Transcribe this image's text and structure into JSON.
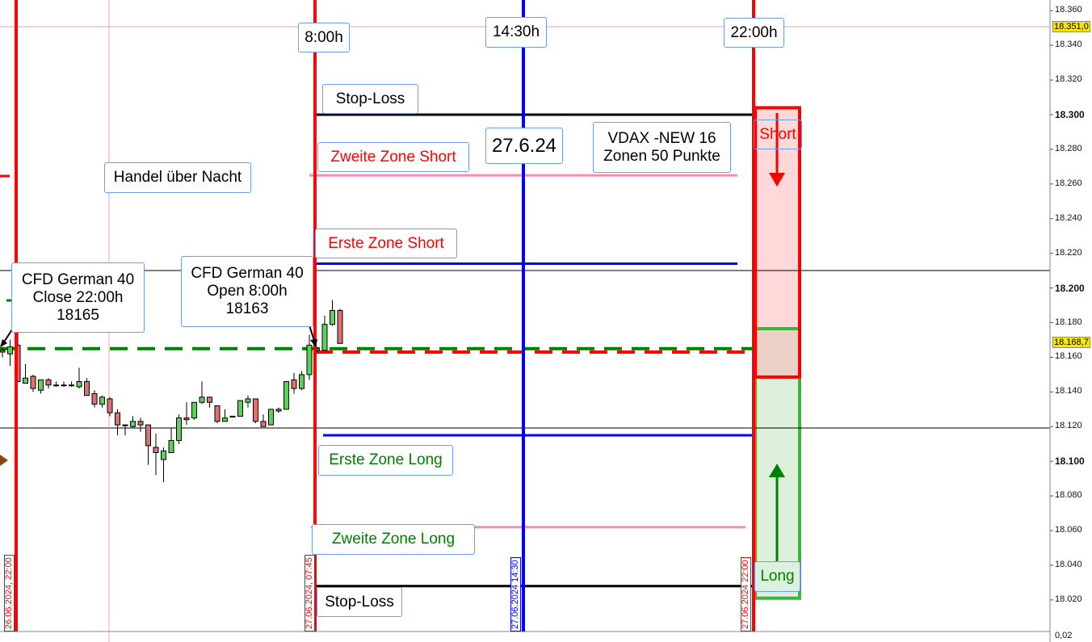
{
  "chart_data": {
    "type": "candlestick",
    "ylim": [
      18002,
      18366
    ],
    "y_ticks": [
      18360,
      18340,
      18320,
      18300,
      18280,
      18260,
      18240,
      18220,
      18200,
      18180,
      18160,
      18140,
      18120,
      18100,
      18080,
      18060,
      18040,
      18020
    ],
    "y_tick_labels": [
      "18.360",
      "18.340",
      "18.320",
      "18.300",
      "18.280",
      "18.260",
      "18.240",
      "18.220",
      "18.200",
      "18.180",
      "18.160",
      "18.140",
      "18.120",
      "18.100",
      "18.080",
      "18.060",
      "18.040",
      "18.020"
    ],
    "bold_ticks": [
      "18.300",
      "18.200",
      "18.100"
    ],
    "price_tags": [
      {
        "value": 18351,
        "label": "18.351,0"
      },
      {
        "value": 18168.7,
        "label": "18.168,7"
      }
    ],
    "lower_panel_label": "0,02",
    "candles": [
      [
        18164,
        18166,
        18160,
        18163
      ],
      [
        18162,
        18170,
        18155,
        18166
      ],
      [
        18167,
        18188,
        18146,
        18146
      ],
      [
        18145,
        18156,
        18145,
        18148
      ],
      [
        18149,
        18150,
        18140,
        18142
      ],
      [
        18141,
        18147,
        18139,
        18147
      ],
      [
        18147,
        18148,
        18142,
        18144
      ],
      [
        18144,
        18146,
        18143,
        18144
      ],
      [
        18144,
        18146,
        18143,
        18144
      ],
      [
        18144,
        18146,
        18143,
        18144
      ],
      [
        18143,
        18154,
        18142,
        18146
      ],
      [
        18146,
        18148,
        18138,
        18138
      ],
      [
        18139,
        18141,
        18131,
        18133
      ],
      [
        18133,
        18138,
        18131,
        18137
      ],
      [
        18136,
        18137,
        18126,
        18128
      ],
      [
        18128,
        18130,
        18115,
        18121
      ],
      [
        18121,
        18121,
        18115,
        18121
      ],
      [
        18120,
        18126,
        18119,
        18123
      ],
      [
        18123,
        18125,
        18117,
        18121
      ],
      [
        18121,
        18121,
        18098,
        18109
      ],
      [
        18108,
        18116,
        18092,
        18105
      ],
      [
        18101,
        18108,
        18088,
        18106
      ],
      [
        18105,
        18119,
        18105,
        18112
      ],
      [
        18112,
        18127,
        18110,
        18125
      ],
      [
        18125,
        18134,
        18121,
        18124
      ],
      [
        18125,
        18134,
        18124,
        18134
      ],
      [
        18134,
        18146,
        18133,
        18137
      ],
      [
        18137,
        18137,
        18131,
        18134
      ],
      [
        18132,
        18132,
        18122,
        18123
      ],
      [
        18123,
        18130,
        18123,
        18125
      ],
      [
        18126,
        18126,
        18126,
        18126
      ],
      [
        18126,
        18135,
        18126,
        18135
      ],
      [
        18134,
        18138,
        18131,
        18136
      ],
      [
        18136,
        18136,
        18122,
        18123
      ],
      [
        18123,
        18127,
        18120,
        18120
      ],
      [
        18121,
        18130,
        18121,
        18130
      ],
      [
        18130,
        18131,
        18128,
        18129
      ],
      [
        18130,
        18146,
        18130,
        18146
      ],
      [
        18147,
        18151,
        18139,
        18142
      ],
      [
        18142,
        18152,
        18141,
        18150
      ],
      [
        18150,
        18173,
        18147,
        18167
      ],
      [
        18164,
        18166,
        18163,
        18165
      ],
      [
        18164,
        18184,
        18164,
        18179
      ],
      [
        18179,
        18193,
        18178,
        18187
      ],
      [
        18187,
        18188,
        18168,
        18168
      ]
    ],
    "levels": [
      {
        "name": "stop-loss-short",
        "value": 18300,
        "color": "#000000"
      },
      {
        "name": "zweite-zone-short",
        "value": 18265,
        "color": "#ff88bb"
      },
      {
        "name": "erste-zone-short",
        "value": 18214,
        "color": "#0000ff"
      },
      {
        "name": "close-22",
        "value": 18165,
        "color": "#008000",
        "dashed": true
      },
      {
        "name": "open-8",
        "value": 18163,
        "color": "#ff0000",
        "dashed": true
      },
      {
        "name": "erste-zone-long",
        "value": 18115,
        "color": "#0000ff"
      },
      {
        "name": "zweite-zone-long",
        "value": 18062,
        "color": "#ff88bb"
      },
      {
        "name": "stop-loss-long",
        "value": 18028,
        "color": "#000000"
      }
    ],
    "zones": {
      "short": [
        18148.6,
        18304
      ],
      "long": [
        18021,
        18176.5
      ]
    }
  },
  "labels": {
    "t800": "8:00h",
    "t1430": "14:30h",
    "t2200": "22:00h",
    "stop_top": "Stop-Loss",
    "date": "27.6.24",
    "vdax": "VDAX -NEW 16\nZonen 50 Punkte",
    "zz_short": "Zweite Zone Short",
    "overnight": "Handel über Nacht",
    "ez_short": "Erste Zone Short",
    "cfd_close": "CFD German 40\nClose 22:00h\n18165",
    "cfd_open": "CFD German 40\nOpen 8:00h\n18163",
    "ez_long": "Erste Zone Long",
    "zz_long": "Zweite Zone Long",
    "stop_bottom": "Stop-Loss",
    "short": "Short",
    "long": "Long"
  },
  "time_labels": [
    "26.06.2024, 22:00",
    "27.06.2024, 07:45",
    "27.06.2024 14:30",
    "27.06.2024 22:00"
  ]
}
